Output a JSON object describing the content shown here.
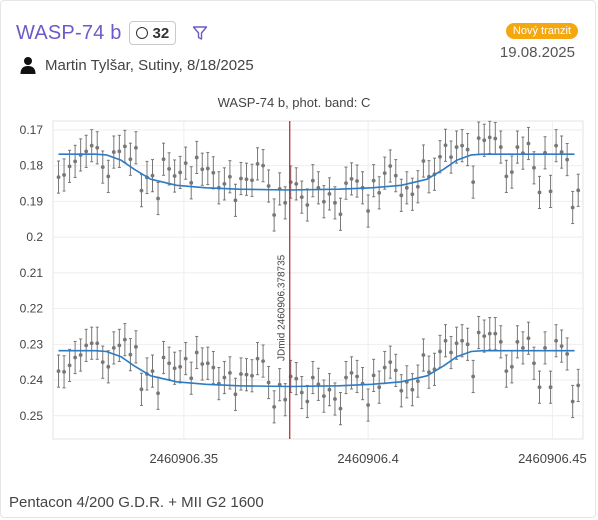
{
  "header": {
    "planet": "WASP-74 b",
    "observation_count": "32",
    "observer_line": "Martin Tylšar, Sutiny, 8/18/2025",
    "tag": "Nový tranzit",
    "date": "19.08.2025",
    "accent_color": "#6b5bc9",
    "tag_color": "#f5a70f",
    "icons": [
      "circle-icon",
      "filter-icon",
      "person-icon"
    ]
  },
  "footer": {
    "equipment": "Pentacon 4/200 G.D.R. + MII G2 1600"
  },
  "chart_data": {
    "type": "scatter",
    "title": "WASP-74 b, phot. band: C",
    "ylim": [
      0.1675,
      0.2565
    ],
    "y_inverted": true,
    "xlim": [
      2460906.3145,
      2460906.4583
    ],
    "y_ticks": [
      "0.17",
      "0.18",
      "0.19",
      "0.2",
      "0.21",
      "0.22",
      "0.23",
      "0.24",
      "0.25"
    ],
    "y_tick_values": [
      0.17,
      0.18,
      0.19,
      0.2,
      0.21,
      0.22,
      0.23,
      0.24,
      0.25
    ],
    "x_ticks": [
      "2460906.35",
      "2460906.4",
      "2460906.45"
    ],
    "x_tick_values": [
      2460906.35,
      2460906.4,
      2460906.45
    ],
    "mid_time_label": "JDmid 2460906.378735",
    "mid_time": 2460906.378735,
    "model_color": "#2c7bc3",
    "mid_line_color": "#b22222",
    "point_color": "#777777",
    "model_upper": {
      "x": [
        2460906.316,
        2460906.326,
        2460906.329,
        2460906.333,
        2460906.3365,
        2460906.341,
        2460906.348,
        2460906.356,
        2460906.365,
        2460906.378735,
        2460906.392,
        2460906.401,
        2460906.409,
        2460906.416,
        2460906.4205,
        2460906.424,
        2460906.428,
        2460906.431,
        2460906.456
      ],
      "y": [
        0.1768,
        0.1768,
        0.177,
        0.1785,
        0.181,
        0.1838,
        0.1855,
        0.1862,
        0.1866,
        0.1868,
        0.1866,
        0.1862,
        0.1855,
        0.1838,
        0.181,
        0.1785,
        0.177,
        0.1768,
        0.1768
      ]
    },
    "model_lower": {
      "x": [
        2460906.316,
        2460906.326,
        2460906.329,
        2460906.333,
        2460906.3365,
        2460906.341,
        2460906.348,
        2460906.356,
        2460906.365,
        2460906.378735,
        2460906.392,
        2460906.401,
        2460906.409,
        2460906.416,
        2460906.4205,
        2460906.424,
        2460906.428,
        2460906.431,
        2460906.456
      ],
      "y": [
        0.2318,
        0.2318,
        0.232,
        0.2335,
        0.236,
        0.2388,
        0.2405,
        0.2412,
        0.2416,
        0.2418,
        0.2416,
        0.2412,
        0.2405,
        0.2388,
        0.236,
        0.2335,
        0.232,
        0.2318,
        0.2318
      ]
    },
    "series_upper": {
      "x": [
        2460906.316,
        2460906.3175,
        2460906.319,
        2460906.3205,
        2460906.322,
        2460906.3235,
        2460906.325,
        2460906.3265,
        2460906.328,
        2460906.3295,
        2460906.331,
        2460906.3325,
        2460906.334,
        2460906.3355,
        2460906.337,
        2460906.3385,
        2460906.34,
        2460906.3415,
        2460906.343,
        2460906.3445,
        2460906.346,
        2460906.3475,
        2460906.349,
        2460906.3505,
        2460906.352,
        2460906.3535,
        2460906.355,
        2460906.3565,
        2460906.358,
        2460906.3595,
        2460906.361,
        2460906.3625,
        2460906.364,
        2460906.3655,
        2460906.367,
        2460906.3685,
        2460906.37,
        2460906.3715,
        2460906.373,
        2460906.3745,
        2460906.376,
        2460906.3775,
        2460906.379,
        2460906.3805,
        2460906.382,
        2460906.3835,
        2460906.385,
        2460906.3865,
        2460906.388,
        2460906.3895,
        2460906.391,
        2460906.3925,
        2460906.394,
        2460906.3955,
        2460906.397,
        2460906.3985,
        2460906.4,
        2460906.4015,
        2460906.403,
        2460906.4045,
        2460906.406,
        2460906.4075,
        2460906.409,
        2460906.4105,
        2460906.412,
        2460906.4135,
        2460906.415,
        2460906.4165,
        2460906.418,
        2460906.4195,
        2460906.421,
        2460906.4225,
        2460906.424,
        2460906.4255,
        2460906.427,
        2460906.4285,
        2460906.43,
        2460906.4315,
        2460906.433,
        2460906.4345,
        2460906.436,
        2460906.4375,
        2460906.439,
        2460906.4405,
        2460906.442,
        2460906.4435,
        2460906.445,
        2460906.4465,
        2460906.448,
        2460906.4495,
        2460906.451,
        2460906.4525,
        2460906.454,
        2460906.4555,
        2460906.457
      ],
      "y": [
        0.1832,
        0.1826,
        0.1802,
        0.1788,
        0.177,
        0.176,
        0.1744,
        0.175,
        0.1804,
        0.183,
        0.1762,
        0.176,
        0.1746,
        0.1782,
        0.175,
        0.187,
        0.1833,
        0.1828,
        0.1892,
        0.1782,
        0.1809,
        0.1829,
        0.1819,
        0.1793,
        0.1848,
        0.1777,
        0.181,
        0.1808,
        0.182,
        0.1862,
        0.1851,
        0.1831,
        0.1897,
        0.1836,
        0.1838,
        0.1841,
        0.1795,
        0.18,
        0.1857,
        0.1938,
        0.1865,
        0.1904,
        0.1846,
        0.1851,
        0.1888,
        0.191,
        0.1842,
        0.1862,
        0.1901,
        0.1879,
        0.1904,
        0.1936,
        0.1849,
        0.1837,
        0.1843,
        0.1862,
        0.1927,
        0.1842,
        0.1876,
        0.1821,
        0.1801,
        0.1828,
        0.1883,
        0.1862,
        0.188,
        0.1859,
        0.1787,
        0.1831,
        0.1824,
        0.1775,
        0.1743,
        0.1776,
        0.1748,
        0.1744,
        0.1755,
        0.1846,
        0.1723,
        0.1729,
        0.1721,
        0.1724,
        0.1748,
        0.183,
        0.1818,
        0.1748,
        0.1765,
        0.1738,
        0.1806,
        0.1875,
        0.1764,
        0.1872,
        0.1744,
        0.1762,
        0.1783,
        0.1917,
        0.1869
      ],
      "err": [
        0.0045,
        0.0045,
        0.0045,
        0.0045,
        0.0045,
        0.0045,
        0.0045,
        0.0045,
        0.0045,
        0.0045,
        0.0045,
        0.0045,
        0.0045,
        0.0045,
        0.0045,
        0.0045,
        0.0045,
        0.0045,
        0.0045,
        0.0045,
        0.0045,
        0.0045,
        0.0045,
        0.0045,
        0.0045,
        0.0045,
        0.0045,
        0.0045,
        0.0045,
        0.0045,
        0.0045,
        0.0045,
        0.0045,
        0.0045,
        0.0045,
        0.0045,
        0.0045,
        0.0045,
        0.0045,
        0.0045,
        0.0045,
        0.0045,
        0.0045,
        0.0045,
        0.0045,
        0.0045,
        0.0045,
        0.0045,
        0.0045,
        0.0045,
        0.0045,
        0.0045,
        0.0045,
        0.0045,
        0.0045,
        0.0045,
        0.0045,
        0.0045,
        0.0045,
        0.0045,
        0.0045,
        0.0045,
        0.0045,
        0.0045,
        0.0045,
        0.0045,
        0.0045,
        0.0045,
        0.0045,
        0.0045,
        0.0045,
        0.0045,
        0.0045,
        0.0045,
        0.0045,
        0.0045,
        0.0045,
        0.0045,
        0.0045,
        0.0045,
        0.0045,
        0.0045,
        0.0045,
        0.0045,
        0.0045,
        0.0045,
        0.0045,
        0.0045,
        0.0045,
        0.0045,
        0.0045,
        0.0045,
        0.0045,
        0.0045,
        0.0045
      ]
    },
    "series_lower": {
      "x": [
        2460906.316,
        2460906.3175,
        2460906.319,
        2460906.3205,
        2460906.322,
        2460906.3235,
        2460906.325,
        2460906.3265,
        2460906.328,
        2460906.3295,
        2460906.331,
        2460906.3325,
        2460906.334,
        2460906.3355,
        2460906.337,
        2460906.3385,
        2460906.34,
        2460906.3415,
        2460906.343,
        2460906.3445,
        2460906.346,
        2460906.3475,
        2460906.349,
        2460906.3505,
        2460906.352,
        2460906.3535,
        2460906.355,
        2460906.3565,
        2460906.358,
        2460906.3595,
        2460906.361,
        2460906.3625,
        2460906.364,
        2460906.3655,
        2460906.367,
        2460906.3685,
        2460906.37,
        2460906.3715,
        2460906.373,
        2460906.3745,
        2460906.376,
        2460906.3775,
        2460906.379,
        2460906.3805,
        2460906.382,
        2460906.3835,
        2460906.385,
        2460906.3865,
        2460906.388,
        2460906.3895,
        2460906.391,
        2460906.3925,
        2460906.394,
        2460906.3955,
        2460906.397,
        2460906.3985,
        2460906.4,
        2460906.4015,
        2460906.403,
        2460906.4045,
        2460906.406,
        2460906.4075,
        2460906.409,
        2460906.4105,
        2460906.412,
        2460906.4135,
        2460906.415,
        2460906.4165,
        2460906.418,
        2460906.4195,
        2460906.421,
        2460906.4225,
        2460906.424,
        2460906.4255,
        2460906.427,
        2460906.4285,
        2460906.43,
        2460906.4315,
        2460906.433,
        2460906.4345,
        2460906.436,
        2460906.4375,
        2460906.439,
        2460906.4405,
        2460906.442,
        2460906.4435,
        2460906.445,
        2460906.4465,
        2460906.448,
        2460906.4495,
        2460906.451,
        2460906.4525,
        2460906.454,
        2460906.4555,
        2460906.457
      ],
      "y": [
        0.2375,
        0.2377,
        0.2359,
        0.2337,
        0.233,
        0.2303,
        0.2297,
        0.2297,
        0.235,
        0.2363,
        0.231,
        0.2303,
        0.2287,
        0.2329,
        0.2307,
        0.2426,
        0.2383,
        0.2375,
        0.2437,
        0.2337,
        0.2353,
        0.2367,
        0.2363,
        0.234,
        0.2395,
        0.2323,
        0.2355,
        0.2353,
        0.2365,
        0.241,
        0.2393,
        0.238,
        0.244,
        0.2383,
        0.2385,
        0.2388,
        0.234,
        0.2347,
        0.2407,
        0.2475,
        0.2413,
        0.2455,
        0.239,
        0.2396,
        0.2435,
        0.246,
        0.2393,
        0.2412,
        0.2445,
        0.2427,
        0.2453,
        0.248,
        0.2393,
        0.238,
        0.239,
        0.241,
        0.247,
        0.2387,
        0.242,
        0.2365,
        0.235,
        0.2373,
        0.243,
        0.2405,
        0.2427,
        0.2403,
        0.233,
        0.2378,
        0.237,
        0.232,
        0.229,
        0.2323,
        0.2297,
        0.229,
        0.23,
        0.239,
        0.2267,
        0.2277,
        0.227,
        0.227,
        0.2293,
        0.2375,
        0.2363,
        0.2293,
        0.231,
        0.2283,
        0.2353,
        0.242,
        0.231,
        0.242,
        0.229,
        0.2305,
        0.2327,
        0.246,
        0.2415
      ],
      "err": [
        0.0045,
        0.0045,
        0.0045,
        0.0045,
        0.0045,
        0.0045,
        0.0045,
        0.0045,
        0.0045,
        0.0045,
        0.0045,
        0.0045,
        0.0045,
        0.0045,
        0.0045,
        0.0045,
        0.0045,
        0.0045,
        0.0045,
        0.0045,
        0.0045,
        0.0045,
        0.0045,
        0.0045,
        0.0045,
        0.0045,
        0.0045,
        0.0045,
        0.0045,
        0.0045,
        0.0045,
        0.0045,
        0.0045,
        0.0045,
        0.0045,
        0.0045,
        0.0045,
        0.0045,
        0.0045,
        0.0045,
        0.0045,
        0.0045,
        0.0045,
        0.0045,
        0.0045,
        0.0045,
        0.0045,
        0.0045,
        0.0045,
        0.0045,
        0.0045,
        0.0045,
        0.0045,
        0.0045,
        0.0045,
        0.0045,
        0.0045,
        0.0045,
        0.0045,
        0.0045,
        0.0045,
        0.0045,
        0.0045,
        0.0045,
        0.0045,
        0.0045,
        0.0045,
        0.0045,
        0.0045,
        0.0045,
        0.0045,
        0.0045,
        0.0045,
        0.0045,
        0.0045,
        0.0045,
        0.0045,
        0.0045,
        0.0045,
        0.0045,
        0.0045,
        0.0045,
        0.0045,
        0.0045,
        0.0045,
        0.0045,
        0.0045,
        0.0045,
        0.0045,
        0.0045,
        0.0045,
        0.0045,
        0.0045,
        0.0045,
        0.0045
      ]
    }
  }
}
